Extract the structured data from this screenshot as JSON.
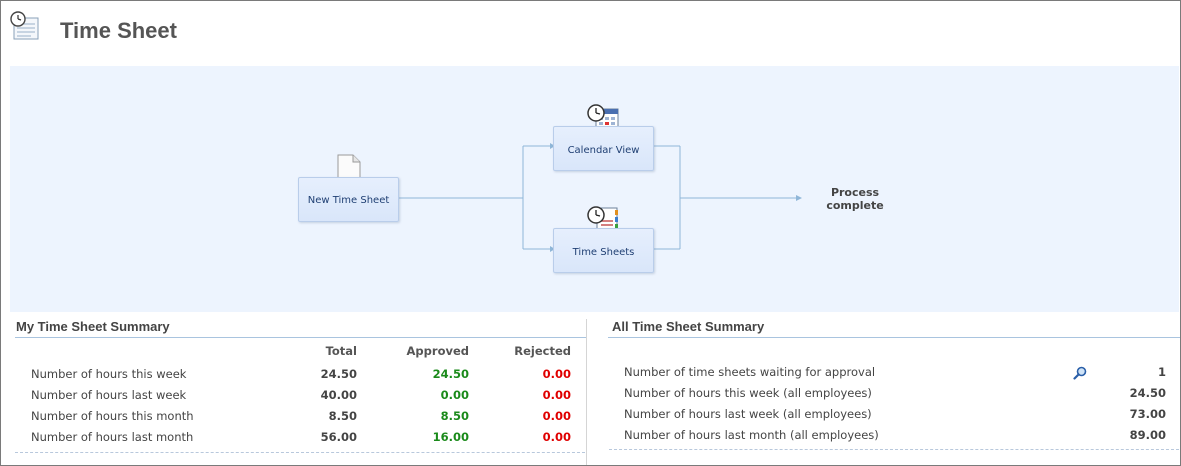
{
  "header": {
    "title": "Time Sheet",
    "icon": "timesheet-clock-icon"
  },
  "flow": {
    "start": {
      "label": "New Time Sheet",
      "icon": "document-icon"
    },
    "branch_calendar": {
      "label": "Calendar View",
      "icon": "calendar-clock-icon"
    },
    "branch_sheets": {
      "label": "Time Sheets",
      "icon": "timesheet-list-icon"
    },
    "end": {
      "label": "Process complete"
    }
  },
  "my_summary": {
    "title": "My Time Sheet Summary",
    "columns": [
      "Total",
      "Approved",
      "Rejected"
    ],
    "rows": [
      {
        "label": "Number of hours this week",
        "total": "24.50",
        "approved": "24.50",
        "rejected": "0.00"
      },
      {
        "label": "Number of hours last week",
        "total": "40.00",
        "approved": "0.00",
        "rejected": "0.00"
      },
      {
        "label": "Number of hours this month",
        "total": "8.50",
        "approved": "8.50",
        "rejected": "0.00"
      },
      {
        "label": "Number of hours last month",
        "total": "56.00",
        "approved": "16.00",
        "rejected": "0.00"
      }
    ]
  },
  "all_summary": {
    "title": "All Time Sheet Summary",
    "rows": [
      {
        "label": "Number of time sheets waiting for approval",
        "value": "1",
        "icon": "magnifier-icon"
      },
      {
        "label": "Number of hours this week (all employees)",
        "value": "24.50"
      },
      {
        "label": "Number of hours last week (all employees)",
        "value": "73.00"
      },
      {
        "label": "Number of hours last month (all employees)",
        "value": "89.00"
      }
    ]
  },
  "colors": {
    "approved": "#1a8a1a",
    "rejected": "#e00000",
    "flow_background": "#edf4fe",
    "node_border": "#b9cdea"
  }
}
